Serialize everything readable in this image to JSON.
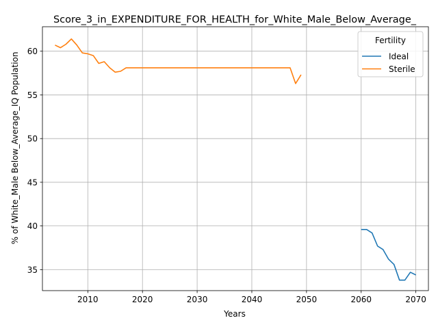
{
  "chart_data": {
    "type": "line",
    "title": "Score_3_in_EXPENDITURE_FOR_HEALTH_for_White_Male_Below_Average_",
    "xlabel": "Years",
    "ylabel": "% of White_Male Below_Average_IQ Population",
    "xlim": [
      2001.7,
      2072.3
    ],
    "ylim": [
      32.6,
      62.8
    ],
    "xticks": [
      2010,
      2020,
      2030,
      2040,
      2050,
      2060,
      2070
    ],
    "yticks": [
      35,
      40,
      45,
      50,
      55,
      60
    ],
    "grid": true,
    "legend": {
      "title": "Fertility",
      "position": "top-right"
    },
    "series": [
      {
        "name": "Ideal",
        "color": "#1f77b4",
        "x": [
          2060,
          2061,
          2062,
          2063,
          2064,
          2065,
          2066,
          2067,
          2068,
          2069,
          2070
        ],
        "y": [
          39.6,
          39.6,
          39.2,
          37.7,
          37.3,
          36.2,
          35.6,
          33.8,
          33.8,
          34.7,
          34.4
        ]
      },
      {
        "name": "Sterile",
        "color": "#ff7f0e",
        "x": [
          2004,
          2005,
          2006,
          2007,
          2008,
          2009,
          2010,
          2011,
          2012,
          2013,
          2014,
          2015,
          2016,
          2017,
          2018,
          2019,
          2020,
          2021,
          2022,
          2023,
          2024,
          2025,
          2026,
          2027,
          2028,
          2029,
          2030,
          2031,
          2032,
          2033,
          2034,
          2035,
          2036,
          2037,
          2038,
          2039,
          2040,
          2041,
          2042,
          2043,
          2044,
          2045,
          2046,
          2047,
          2048,
          2049
        ],
        "y": [
          60.7,
          60.4,
          60.8,
          61.4,
          60.7,
          59.8,
          59.7,
          59.5,
          58.6,
          58.8,
          58.1,
          57.6,
          57.7,
          58.1,
          58.1,
          58.1,
          58.1,
          58.1,
          58.1,
          58.1,
          58.1,
          58.1,
          58.1,
          58.1,
          58.1,
          58.1,
          58.1,
          58.1,
          58.1,
          58.1,
          58.1,
          58.1,
          58.1,
          58.1,
          58.1,
          58.1,
          58.1,
          58.1,
          58.1,
          58.1,
          58.1,
          58.1,
          58.1,
          58.1,
          56.3,
          57.3
        ]
      }
    ]
  }
}
